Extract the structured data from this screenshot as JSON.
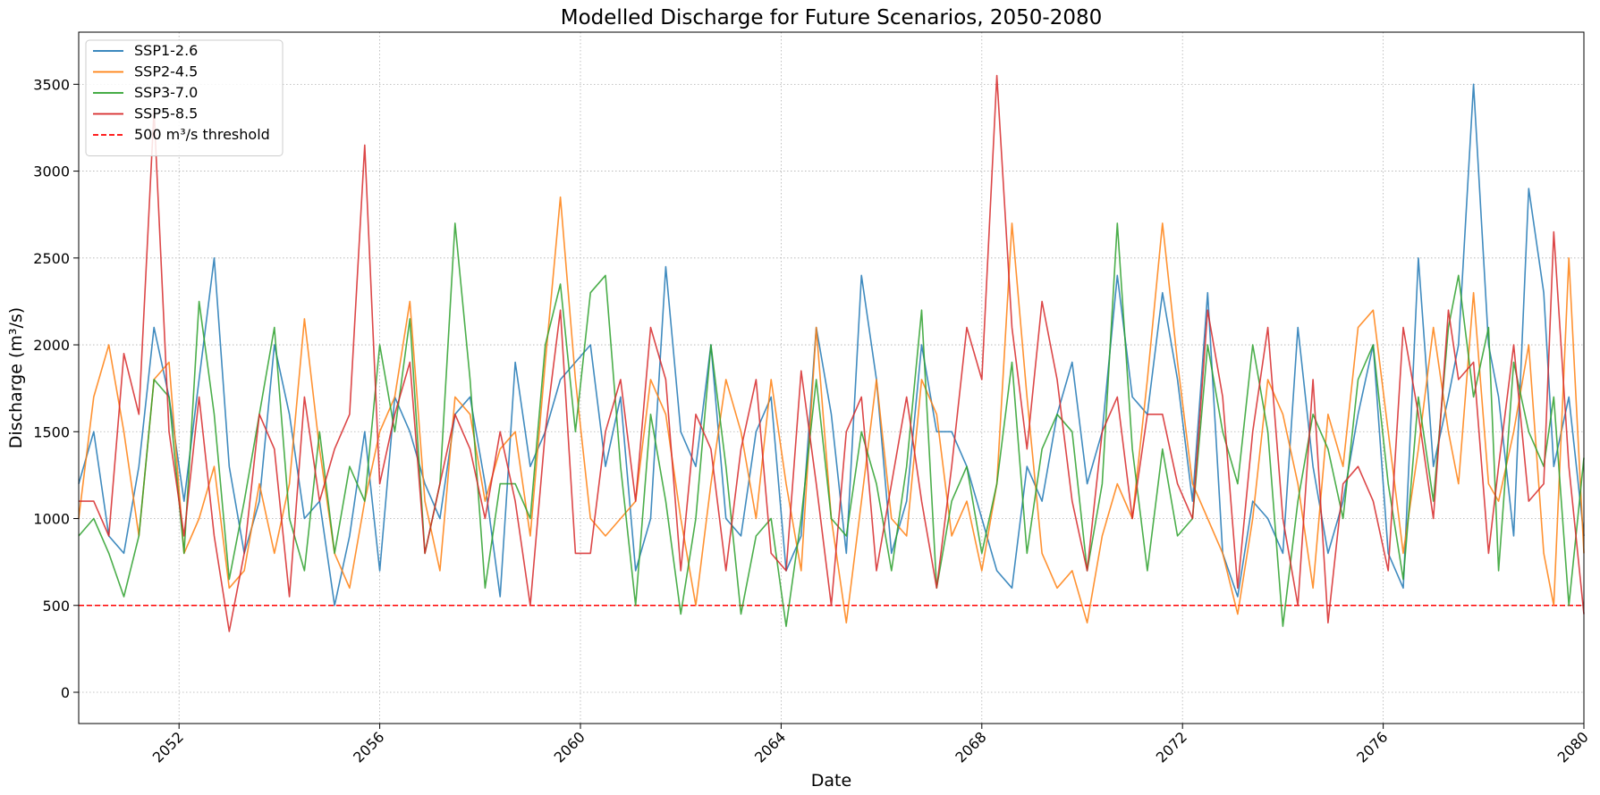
{
  "chart_data": {
    "type": "line",
    "title": "Modelled Discharge for Future Scenarios, 2050-2080",
    "xlabel": "Date",
    "ylabel": "Discharge (m³/s)",
    "xlim": [
      2050,
      2080
    ],
    "ylim": [
      -180,
      3800
    ],
    "xticks": [
      2052,
      2056,
      2060,
      2064,
      2068,
      2072,
      2076,
      2080
    ],
    "yticks": [
      0,
      500,
      1000,
      1500,
      2000,
      2500,
      3000,
      3500
    ],
    "grid": true,
    "legend_position": "top-left",
    "series": [
      {
        "name": "SSP1-2.6",
        "color": "#1f77b4",
        "x": [
          2050.0,
          2050.3,
          2050.6,
          2050.9,
          2051.2,
          2051.5,
          2051.8,
          2052.1,
          2052.4,
          2052.7,
          2053.0,
          2053.3,
          2053.6,
          2053.9,
          2054.2,
          2054.5,
          2054.8,
          2055.1,
          2055.4,
          2055.7,
          2056.0,
          2056.3,
          2056.6,
          2056.9,
          2057.2,
          2057.5,
          2057.8,
          2058.1,
          2058.4,
          2058.7,
          2059.0,
          2059.3,
          2059.6,
          2059.9,
          2060.2,
          2060.5,
          2060.8,
          2061.1,
          2061.4,
          2061.7,
          2062.0,
          2062.3,
          2062.6,
          2062.9,
          2063.2,
          2063.5,
          2063.8,
          2064.1,
          2064.4,
          2064.7,
          2065.0,
          2065.3,
          2065.6,
          2065.9,
          2066.2,
          2066.5,
          2066.8,
          2067.1,
          2067.4,
          2067.7,
          2068.0,
          2068.3,
          2068.6,
          2068.9,
          2069.2,
          2069.5,
          2069.8,
          2070.1,
          2070.4,
          2070.7,
          2071.0,
          2071.3,
          2071.6,
          2071.9,
          2072.2,
          2072.5,
          2072.8,
          2073.1,
          2073.4,
          2073.7,
          2074.0,
          2074.3,
          2074.6,
          2074.9,
          2075.2,
          2075.5,
          2075.8,
          2076.1,
          2076.4,
          2076.7,
          2077.0,
          2077.3,
          2077.5,
          2077.8,
          2078.1,
          2078.3,
          2078.6,
          2078.9,
          2079.2,
          2079.4,
          2079.7,
          2080.0
        ],
        "y": [
          1200,
          1500,
          900,
          800,
          1300,
          2100,
          1700,
          1100,
          1800,
          2500,
          1300,
          800,
          1100,
          2000,
          1600,
          1000,
          1100,
          500,
          900,
          1500,
          700,
          1700,
          1500,
          1200,
          1000,
          1600,
          1700,
          1200,
          550,
          1900,
          1300,
          1500,
          1800,
          1900,
          2000,
          1300,
          1700,
          700,
          1000,
          2450,
          1500,
          1300,
          2000,
          1000,
          900,
          1500,
          1700,
          700,
          900,
          2100,
          1600,
          800,
          2400,
          1800,
          800,
          1100,
          2000,
          1500,
          1500,
          1300,
          1000,
          700,
          600,
          1300,
          1100,
          1600,
          1900,
          1200,
          1500,
          2400,
          1700,
          1600,
          2300,
          1800,
          1100,
          2300,
          800,
          550,
          1100,
          1000,
          800,
          2100,
          1300,
          800,
          1100,
          1600,
          2000,
          800,
          600,
          2500,
          1300,
          1700,
          2000,
          3500,
          2000,
          1700,
          900,
          2900,
          2300,
          1300,
          1700,
          900
        ]
      },
      {
        "name": "SSP2-4.5",
        "color": "#ff7f0e",
        "x": [
          2050.0,
          2050.3,
          2050.6,
          2050.9,
          2051.2,
          2051.5,
          2051.8,
          2052.1,
          2052.4,
          2052.7,
          2053.0,
          2053.3,
          2053.6,
          2053.9,
          2054.2,
          2054.5,
          2054.8,
          2055.1,
          2055.4,
          2055.7,
          2056.0,
          2056.3,
          2056.6,
          2056.9,
          2057.2,
          2057.5,
          2057.8,
          2058.1,
          2058.4,
          2058.7,
          2059.0,
          2059.3,
          2059.6,
          2059.9,
          2060.2,
          2060.5,
          2060.8,
          2061.1,
          2061.4,
          2061.7,
          2062.0,
          2062.3,
          2062.6,
          2062.9,
          2063.2,
          2063.5,
          2063.8,
          2064.1,
          2064.4,
          2064.7,
          2065.0,
          2065.3,
          2065.6,
          2065.9,
          2066.2,
          2066.5,
          2066.8,
          2067.1,
          2067.4,
          2067.7,
          2068.0,
          2068.3,
          2068.6,
          2068.9,
          2069.2,
          2069.5,
          2069.8,
          2070.1,
          2070.4,
          2070.7,
          2071.0,
          2071.3,
          2071.6,
          2071.9,
          2072.2,
          2072.5,
          2072.8,
          2073.1,
          2073.4,
          2073.7,
          2074.0,
          2074.3,
          2074.6,
          2074.9,
          2075.2,
          2075.5,
          2075.8,
          2076.1,
          2076.4,
          2076.7,
          2077.0,
          2077.3,
          2077.5,
          2077.8,
          2078.1,
          2078.3,
          2078.6,
          2078.9,
          2079.2,
          2079.4,
          2079.7,
          2080.0
        ],
        "y": [
          1000,
          1700,
          2000,
          1500,
          900,
          1800,
          1900,
          800,
          1000,
          1300,
          600,
          700,
          1200,
          800,
          1200,
          2150,
          1400,
          800,
          600,
          1100,
          1500,
          1700,
          2250,
          1100,
          700,
          1700,
          1600,
          1100,
          1400,
          1500,
          900,
          1900,
          2850,
          1800,
          1000,
          900,
          1000,
          1100,
          1800,
          1600,
          1000,
          500,
          1200,
          1800,
          1500,
          1000,
          1800,
          1200,
          700,
          2100,
          1000,
          400,
          1100,
          1800,
          1000,
          900,
          1800,
          1600,
          900,
          1100,
          700,
          1200,
          2700,
          1700,
          800,
          600,
          700,
          400,
          900,
          1200,
          1000,
          1800,
          2700,
          1900,
          1200,
          1000,
          800,
          450,
          1000,
          1800,
          1600,
          1200,
          600,
          1600,
          1300,
          2100,
          2200,
          1500,
          800,
          1400,
          2100,
          1500,
          1200,
          2300,
          1200,
          1100,
          1500,
          2000,
          800,
          500,
          2500,
          800
        ]
      },
      {
        "name": "SSP3-7.0",
        "color": "#2ca02c",
        "x": [
          2050.0,
          2050.3,
          2050.6,
          2050.9,
          2051.2,
          2051.5,
          2051.8,
          2052.1,
          2052.4,
          2052.7,
          2053.0,
          2053.3,
          2053.6,
          2053.9,
          2054.2,
          2054.5,
          2054.8,
          2055.1,
          2055.4,
          2055.7,
          2056.0,
          2056.3,
          2056.6,
          2056.9,
          2057.2,
          2057.5,
          2057.8,
          2058.1,
          2058.4,
          2058.7,
          2059.0,
          2059.3,
          2059.6,
          2059.9,
          2060.2,
          2060.5,
          2060.8,
          2061.1,
          2061.4,
          2061.7,
          2062.0,
          2062.3,
          2062.6,
          2062.9,
          2063.2,
          2063.5,
          2063.8,
          2064.1,
          2064.4,
          2064.7,
          2065.0,
          2065.3,
          2065.6,
          2065.9,
          2066.2,
          2066.5,
          2066.8,
          2067.1,
          2067.4,
          2067.7,
          2068.0,
          2068.3,
          2068.6,
          2068.9,
          2069.2,
          2069.5,
          2069.8,
          2070.1,
          2070.4,
          2070.7,
          2071.0,
          2071.3,
          2071.6,
          2071.9,
          2072.2,
          2072.5,
          2072.8,
          2073.1,
          2073.4,
          2073.7,
          2074.0,
          2074.3,
          2074.6,
          2074.9,
          2075.2,
          2075.5,
          2075.8,
          2076.1,
          2076.4,
          2076.7,
          2077.0,
          2077.3,
          2077.5,
          2077.8,
          2078.1,
          2078.3,
          2078.6,
          2078.9,
          2079.2,
          2079.4,
          2079.7,
          2080.0
        ],
        "y": [
          900,
          1000,
          800,
          550,
          900,
          1800,
          1700,
          800,
          2250,
          1600,
          650,
          1100,
          1600,
          2100,
          1000,
          700,
          1500,
          800,
          1300,
          1100,
          2000,
          1500,
          2150,
          800,
          1200,
          2700,
          1800,
          600,
          1200,
          1200,
          1000,
          2000,
          2350,
          1500,
          2300,
          2400,
          1300,
          500,
          1600,
          1100,
          450,
          1000,
          2000,
          1300,
          450,
          900,
          1000,
          380,
          1000,
          1800,
          1000,
          900,
          1500,
          1200,
          700,
          1300,
          2200,
          600,
          1100,
          1300,
          800,
          1200,
          1900,
          800,
          1400,
          1600,
          1500,
          700,
          1200,
          2700,
          1400,
          700,
          1400,
          900,
          1000,
          2000,
          1500,
          1200,
          2000,
          1500,
          380,
          1100,
          1600,
          1400,
          1000,
          1800,
          2000,
          1200,
          650,
          1700,
          1100,
          2100,
          2400,
          1700,
          2100,
          700,
          1900,
          1500,
          1300,
          1700,
          500,
          1350
        ]
      },
      {
        "name": "SSP5-8.5",
        "color": "#d62728",
        "x": [
          2050.0,
          2050.3,
          2050.6,
          2050.9,
          2051.2,
          2051.5,
          2051.8,
          2052.1,
          2052.4,
          2052.7,
          2053.0,
          2053.3,
          2053.6,
          2053.9,
          2054.2,
          2054.5,
          2054.8,
          2055.1,
          2055.4,
          2055.7,
          2056.0,
          2056.3,
          2056.6,
          2056.9,
          2057.2,
          2057.5,
          2057.8,
          2058.1,
          2058.4,
          2058.7,
          2059.0,
          2059.3,
          2059.6,
          2059.9,
          2060.2,
          2060.5,
          2060.8,
          2061.1,
          2061.4,
          2061.7,
          2062.0,
          2062.3,
          2062.6,
          2062.9,
          2063.2,
          2063.5,
          2063.8,
          2064.1,
          2064.4,
          2064.7,
          2065.0,
          2065.3,
          2065.6,
          2065.9,
          2066.2,
          2066.5,
          2066.8,
          2067.1,
          2067.4,
          2067.7,
          2068.0,
          2068.3,
          2068.6,
          2068.9,
          2069.2,
          2069.5,
          2069.8,
          2070.1,
          2070.4,
          2070.7,
          2071.0,
          2071.3,
          2071.6,
          2071.9,
          2072.2,
          2072.5,
          2072.8,
          2073.1,
          2073.4,
          2073.7,
          2074.0,
          2074.3,
          2074.6,
          2074.9,
          2075.2,
          2075.5,
          2075.8,
          2076.1,
          2076.4,
          2076.7,
          2077.0,
          2077.3,
          2077.5,
          2077.8,
          2078.1,
          2078.3,
          2078.6,
          2078.9,
          2079.2,
          2079.4,
          2079.7,
          2080.0
        ],
        "y": [
          1100,
          1100,
          900,
          1950,
          1600,
          3350,
          1500,
          900,
          1700,
          900,
          350,
          800,
          1600,
          1400,
          550,
          1700,
          1100,
          1400,
          1600,
          3150,
          1200,
          1600,
          1900,
          800,
          1200,
          1600,
          1400,
          1000,
          1500,
          1100,
          500,
          1500,
          2200,
          800,
          800,
          1500,
          1800,
          1100,
          2100,
          1800,
          700,
          1600,
          1400,
          700,
          1400,
          1800,
          800,
          700,
          1850,
          1200,
          500,
          1500,
          1700,
          700,
          1200,
          1700,
          1100,
          600,
          1300,
          2100,
          1800,
          3550,
          2100,
          1400,
          2250,
          1800,
          1100,
          700,
          1500,
          1700,
          1000,
          1600,
          1600,
          1200,
          1000,
          2200,
          1700,
          600,
          1500,
          2100,
          1000,
          500,
          1800,
          400,
          1200,
          1300,
          1100,
          700,
          2100,
          1600,
          1000,
          2200,
          1800,
          1900,
          800,
          1300,
          2000,
          1100,
          1200,
          2650,
          1300,
          450
        ]
      }
    ],
    "threshold": {
      "label": "500 m³/s threshold",
      "value": 500,
      "color": "#ff0000"
    }
  }
}
